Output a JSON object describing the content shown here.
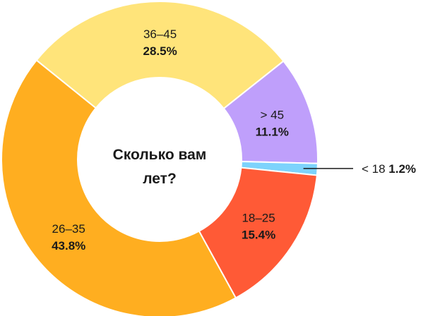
{
  "chart_data": {
    "type": "pie",
    "donut": true,
    "title": "Сколько вам лет?",
    "title_lines": [
      "Сколько вам",
      "лет?"
    ],
    "categories": [
      "> 45",
      "< 18",
      "18–25",
      "26–35",
      "36–45"
    ],
    "values": [
      11.1,
      1.2,
      15.4,
      43.8,
      28.5
    ],
    "value_labels": [
      "11.1%",
      "1.2%",
      "15.4%",
      "43.8%",
      "28.5%"
    ],
    "colors": [
      "#bf9ffb",
      "#7dd3fc",
      "#ff5a36",
      "#ffae20",
      "#ffe47a"
    ]
  }
}
